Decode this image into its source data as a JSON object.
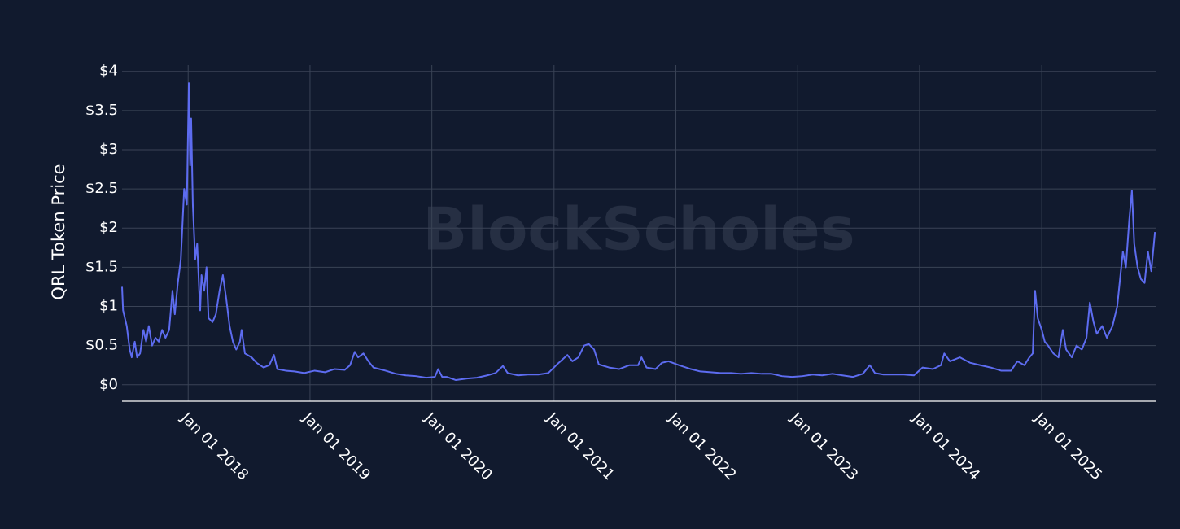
{
  "chart_data": {
    "type": "line",
    "watermark": "BlockScholes",
    "y_label": "QRL Token Price",
    "color": "#5d6cf0",
    "grid": true,
    "xlim": [
      "2017-06-17",
      "2025-12-08"
    ],
    "xticks": [
      {
        "value": "2018-01-01",
        "label": "Jan 01 2018"
      },
      {
        "value": "2019-01-01",
        "label": "Jan 01 2019"
      },
      {
        "value": "2020-01-01",
        "label": "Jan 01 2020"
      },
      {
        "value": "2021-01-01",
        "label": "Jan 01 2021"
      },
      {
        "value": "2022-01-01",
        "label": "Jan 01 2022"
      },
      {
        "value": "2023-01-01",
        "label": "Jan 01 2023"
      },
      {
        "value": "2024-01-01",
        "label": "Jan 01 2024"
      },
      {
        "value": "2025-01-01",
        "label": "Jan 01 2025"
      }
    ],
    "ylim": [
      -0.21,
      4.08
    ],
    "yticks": [
      {
        "value": 0,
        "label": "$0"
      },
      {
        "value": 0.5,
        "label": "$0.5"
      },
      {
        "value": 1,
        "label": "$1"
      },
      {
        "value": 1.5,
        "label": "$1.5"
      },
      {
        "value": 2,
        "label": "$2"
      },
      {
        "value": 2.5,
        "label": "$2.5"
      },
      {
        "value": 3,
        "label": "$3"
      },
      {
        "value": 3.5,
        "label": "$3.5"
      },
      {
        "value": 4,
        "label": "$4"
      }
    ],
    "x": [
      "2017-06-17",
      "2017-06-20",
      "2017-07-01",
      "2017-07-10",
      "2017-07-16",
      "2017-07-25",
      "2017-08-01",
      "2017-08-10",
      "2017-08-20",
      "2017-08-28",
      "2017-09-05",
      "2017-09-15",
      "2017-09-25",
      "2017-10-05",
      "2017-10-15",
      "2017-10-25",
      "2017-11-05",
      "2017-11-15",
      "2017-11-22",
      "2017-12-01",
      "2017-12-10",
      "2017-12-20",
      "2017-12-28",
      "2018-01-03",
      "2018-01-07",
      "2018-01-10",
      "2018-01-15",
      "2018-01-22",
      "2018-01-28",
      "2018-02-03",
      "2018-02-06",
      "2018-02-10",
      "2018-02-18",
      "2018-02-25",
      "2018-03-03",
      "2018-03-15",
      "2018-03-25",
      "2018-04-05",
      "2018-04-15",
      "2018-04-25",
      "2018-05-05",
      "2018-05-15",
      "2018-05-25",
      "2018-06-05",
      "2018-06-10",
      "2018-06-20",
      "2018-07-10",
      "2018-07-25",
      "2018-08-15",
      "2018-09-01",
      "2018-09-15",
      "2018-09-25",
      "2018-10-20",
      "2018-11-15",
      "2018-12-15",
      "2019-01-15",
      "2019-02-15",
      "2019-03-15",
      "2019-04-15",
      "2019-05-01",
      "2019-05-15",
      "2019-05-25",
      "2019-06-10",
      "2019-06-25",
      "2019-07-10",
      "2019-08-15",
      "2019-09-15",
      "2019-10-15",
      "2019-11-15",
      "2019-12-15",
      "2020-01-10",
      "2020-01-20",
      "2020-02-01",
      "2020-02-15",
      "2020-03-13",
      "2020-04-15",
      "2020-05-15",
      "2020-06-15",
      "2020-07-10",
      "2020-08-01",
      "2020-08-15",
      "2020-09-15",
      "2020-10-15",
      "2020-11-15",
      "2020-12-15",
      "2021-01-15",
      "2021-02-10",
      "2021-02-25",
      "2021-03-15",
      "2021-04-01",
      "2021-04-15",
      "2021-05-01",
      "2021-05-15",
      "2021-06-15",
      "2021-07-15",
      "2021-08-15",
      "2021-09-10",
      "2021-09-20",
      "2021-10-05",
      "2021-11-01",
      "2021-11-20",
      "2021-12-10",
      "2022-01-10",
      "2022-02-15",
      "2022-03-15",
      "2022-04-15",
      "2022-05-15",
      "2022-06-15",
      "2022-07-15",
      "2022-08-15",
      "2022-09-15",
      "2022-10-15",
      "2022-11-15",
      "2022-12-15",
      "2023-01-15",
      "2023-02-15",
      "2023-03-15",
      "2023-04-15",
      "2023-05-15",
      "2023-06-15",
      "2023-07-15",
      "2023-08-05",
      "2023-08-20",
      "2023-09-15",
      "2023-10-15",
      "2023-11-15",
      "2023-12-15",
      "2024-01-10",
      "2024-02-10",
      "2024-03-05",
      "2024-03-15",
      "2024-04-01",
      "2024-05-01",
      "2024-06-01",
      "2024-07-01",
      "2024-08-01",
      "2024-09-01",
      "2024-10-01",
      "2024-10-20",
      "2024-11-10",
      "2024-11-25",
      "2024-12-05",
      "2024-12-12",
      "2024-12-20",
      "2025-01-01",
      "2025-01-10",
      "2025-01-20",
      "2025-02-05",
      "2025-02-20",
      "2025-03-05",
      "2025-03-15",
      "2025-04-01",
      "2025-04-15",
      "2025-05-01",
      "2025-05-15",
      "2025-05-25",
      "2025-06-05",
      "2025-06-15",
      "2025-07-01",
      "2025-07-15",
      "2025-08-01",
      "2025-08-15",
      "2025-09-01",
      "2025-09-10",
      "2025-09-20",
      "2025-09-28",
      "2025-10-05",
      "2025-10-15",
      "2025-10-25",
      "2025-11-05",
      "2025-11-15",
      "2025-11-25",
      "2025-12-06"
    ],
    "values": [
      1.25,
      0.95,
      0.75,
      0.45,
      0.35,
      0.55,
      0.35,
      0.4,
      0.7,
      0.55,
      0.75,
      0.5,
      0.6,
      0.55,
      0.7,
      0.6,
      0.7,
      1.2,
      0.9,
      1.3,
      1.6,
      2.5,
      2.3,
      3.85,
      2.8,
      3.4,
      2.3,
      1.6,
      1.8,
      1.2,
      0.95,
      1.4,
      1.2,
      1.5,
      0.85,
      0.8,
      0.9,
      1.2,
      1.4,
      1.1,
      0.75,
      0.55,
      0.45,
      0.55,
      0.7,
      0.4,
      0.35,
      0.28,
      0.22,
      0.25,
      0.38,
      0.2,
      0.18,
      0.17,
      0.15,
      0.18,
      0.16,
      0.2,
      0.19,
      0.25,
      0.42,
      0.35,
      0.4,
      0.3,
      0.22,
      0.18,
      0.14,
      0.12,
      0.11,
      0.09,
      0.1,
      0.2,
      0.1,
      0.1,
      0.06,
      0.08,
      0.09,
      0.12,
      0.15,
      0.24,
      0.15,
      0.12,
      0.13,
      0.13,
      0.15,
      0.28,
      0.38,
      0.3,
      0.35,
      0.5,
      0.52,
      0.45,
      0.26,
      0.22,
      0.2,
      0.25,
      0.25,
      0.35,
      0.22,
      0.2,
      0.28,
      0.3,
      0.25,
      0.2,
      0.17,
      0.16,
      0.15,
      0.15,
      0.14,
      0.15,
      0.14,
      0.14,
      0.11,
      0.1,
      0.11,
      0.13,
      0.12,
      0.14,
      0.12,
      0.1,
      0.14,
      0.25,
      0.15,
      0.13,
      0.13,
      0.13,
      0.12,
      0.22,
      0.2,
      0.25,
      0.4,
      0.3,
      0.35,
      0.28,
      0.25,
      0.22,
      0.18,
      0.18,
      0.3,
      0.25,
      0.35,
      0.4,
      1.2,
      0.85,
      0.7,
      0.55,
      0.5,
      0.4,
      0.35,
      0.7,
      0.45,
      0.35,
      0.5,
      0.45,
      0.6,
      1.05,
      0.8,
      0.65,
      0.75,
      0.6,
      0.75,
      1.0,
      1.7,
      1.5,
      2.1,
      2.48,
      1.8,
      1.5,
      1.35,
      1.3,
      1.7,
      1.45,
      1.95
    ]
  }
}
